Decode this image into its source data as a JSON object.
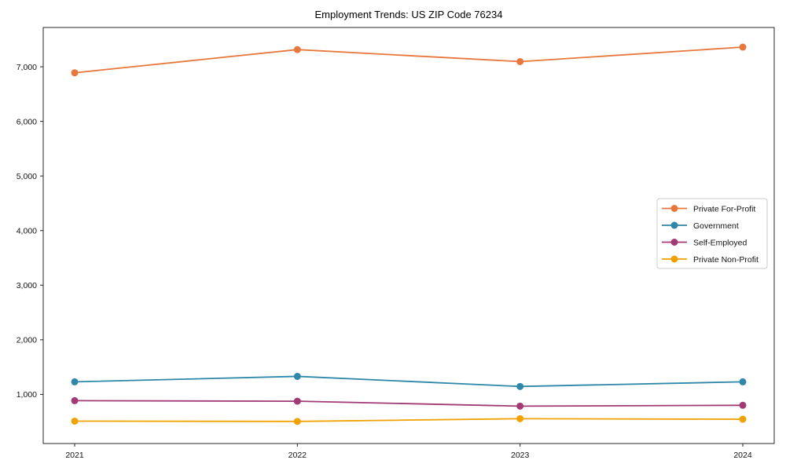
{
  "chart_data": {
    "type": "line",
    "title": "Employment Trends: US ZIP Code 76234",
    "x": [
      2021,
      2022,
      2023,
      2024
    ],
    "x_tick_labels": [
      "2021",
      "2022",
      "2023",
      "2024"
    ],
    "series": [
      {
        "name": "Private For-Profit",
        "color": "#e8773d",
        "marker": "circle",
        "values": [
          6890,
          7315,
          7095,
          7360
        ]
      },
      {
        "name": "Government",
        "color": "#2e87a9",
        "marker": "circle",
        "values": [
          1230,
          1330,
          1145,
          1230
        ]
      },
      {
        "name": "Self-Employed",
        "color": "#a23a75",
        "marker": "circle",
        "values": [
          885,
          875,
          785,
          800
        ]
      },
      {
        "name": "Private Non-Profit",
        "color": "#f0a202",
        "marker": "circle",
        "values": [
          510,
          505,
          555,
          545
        ]
      }
    ],
    "ylim": [
      100,
      7720
    ],
    "yticks": [
      {
        "value": 1000,
        "label": "1,000"
      },
      {
        "value": 2000,
        "label": "2,000"
      },
      {
        "value": 3000,
        "label": "3,000"
      },
      {
        "value": 4000,
        "label": "4,000"
      },
      {
        "value": 5000,
        "label": "5,000"
      },
      {
        "value": 6000,
        "label": "6,000"
      },
      {
        "value": 7000,
        "label": "7,000"
      }
    ],
    "xlabel": "",
    "ylabel": "",
    "grid": false,
    "legend_position": "right-middle",
    "colors": {
      "axis": "#262626",
      "tick_label": "#111111",
      "title_text": "#000000",
      "legend_border": "#cccccc",
      "legend_background": "#ffffff"
    }
  }
}
